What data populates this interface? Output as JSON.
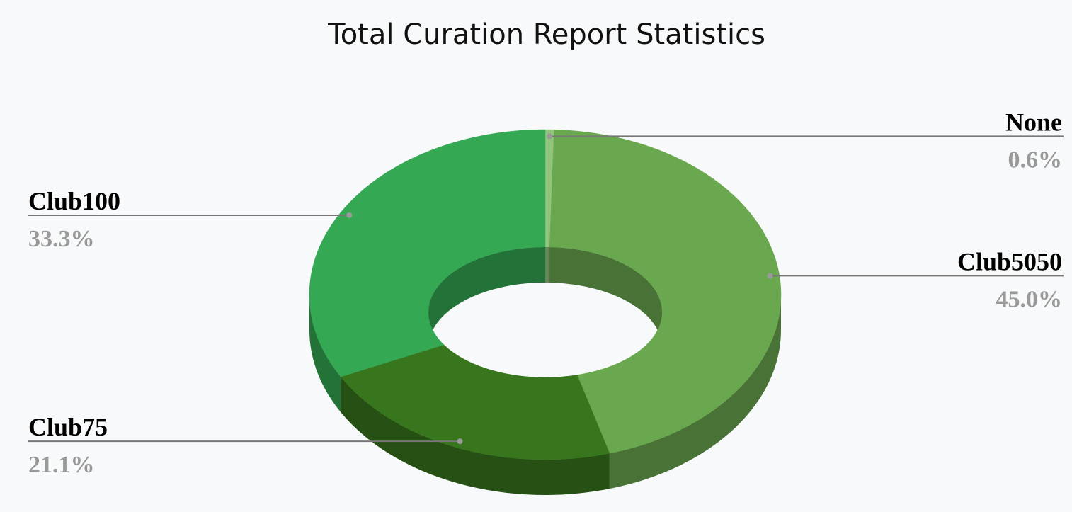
{
  "chart_data": {
    "type": "donut",
    "title": "Total Curation Report Statistics",
    "categories": [
      "None",
      "Club5050",
      "Club75",
      "Club100"
    ],
    "values": [
      0.6,
      45.0,
      21.1,
      33.3
    ],
    "value_labels": [
      "0.6%",
      "45.0%",
      "21.1%",
      "33.3%"
    ],
    "colors": [
      "#93c47d",
      "#6aa84f",
      "#38761d",
      "#34a853"
    ]
  }
}
